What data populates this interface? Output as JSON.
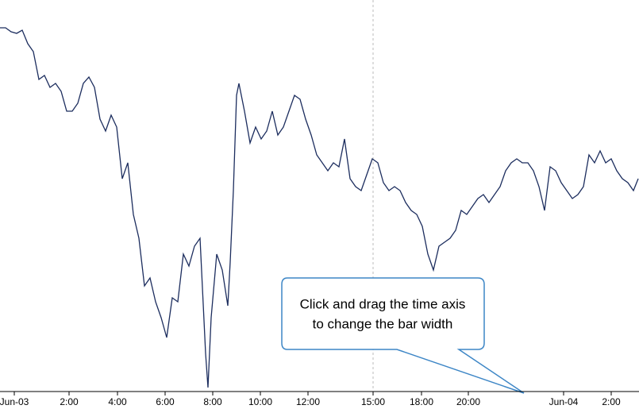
{
  "chart_data": {
    "type": "line",
    "x": [
      0,
      7,
      14,
      21,
      28,
      35,
      42,
      49,
      56,
      63,
      70,
      77,
      84,
      91,
      98,
      105,
      112,
      119,
      126,
      133,
      140,
      147,
      154,
      161,
      168,
      175,
      182,
      189,
      196,
      203,
      210,
      217,
      224,
      231,
      238,
      245,
      252,
      259,
      262,
      266,
      273,
      280,
      287,
      290,
      294,
      298,
      301,
      308,
      315,
      322,
      329,
      336,
      343,
      350,
      357,
      364,
      371,
      378,
      385,
      392,
      399,
      406,
      413,
      420,
      427,
      434,
      441,
      448,
      455,
      462,
      469,
      476,
      483,
      490,
      497,
      504,
      511,
      518,
      525,
      532,
      539,
      546,
      553,
      560,
      567,
      574,
      581,
      588,
      595,
      602,
      609,
      616,
      623,
      630,
      637,
      644,
      651,
      658,
      665,
      672,
      679,
      686,
      693,
      700,
      707,
      714,
      721,
      728,
      735,
      742,
      749,
      756,
      763,
      770,
      777,
      784,
      791,
      798,
      804
    ],
    "series": [
      {
        "color": "#1c2d5e",
        "values": [
          457,
          457,
          452,
          450,
          454,
          437,
          427,
          392,
          397,
          382,
          387,
          377,
          352,
          352,
          362,
          387,
          395,
          382,
          342,
          327,
          347,
          332,
          267,
          287,
          222,
          192,
          132,
          142,
          112,
          92,
          67,
          117,
          112,
          172,
          157,
          182,
          192,
          47,
          4,
          92,
          172,
          152,
          107,
          162,
          252,
          372,
          387,
          352,
          312,
          332,
          317,
          327,
          352,
          322,
          332,
          352,
          372,
          367,
          342,
          322,
          297,
          287,
          277,
          287,
          282,
          317,
          267,
          257,
          252,
          272,
          292,
          287,
          262,
          252,
          257,
          252,
          237,
          227,
          222,
          207,
          172,
          152,
          182,
          187,
          192,
          202,
          227,
          222,
          232,
          242,
          247,
          237,
          247,
          257,
          277,
          287,
          292,
          287,
          287,
          277,
          257,
          227,
          282,
          277,
          262,
          252,
          242,
          247,
          257,
          297,
          287,
          302,
          287,
          292,
          277,
          267,
          262,
          252,
          267
        ]
      }
    ],
    "xlim": [
      0,
      805
    ],
    "ylim": [
      0,
      492
    ],
    "xticks": [
      {
        "value": 18,
        "label": "Jun-03"
      },
      {
        "value": 87,
        "label": "2:00"
      },
      {
        "value": 148,
        "label": "4:00"
      },
      {
        "value": 208,
        "label": "6:00"
      },
      {
        "value": 268,
        "label": "8:00"
      },
      {
        "value": 328,
        "label": "10:00"
      },
      {
        "value": 388,
        "label": "12:00"
      },
      {
        "value": 470,
        "label": "15:00"
      },
      {
        "value": 531,
        "label": "18:00"
      },
      {
        "value": 590,
        "label": "20:00"
      },
      {
        "value": 710,
        "label": "Jun-04"
      },
      {
        "value": 770,
        "label": "2:00"
      }
    ],
    "marker_line": 470,
    "annotation": [
      "Click and drag the time axis",
      "to change the bar width"
    ]
  }
}
